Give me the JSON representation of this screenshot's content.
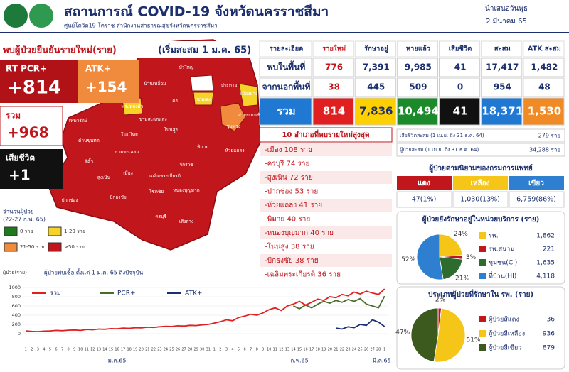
{
  "header": {
    "title": "สถานการณ์ COVID-19 จังหวัดนครราชสีมา",
    "subtitle": "ศูนย์โควิด19 โคราช สำนักงานสาธารณสุขจังหวัดนครราชสีมา",
    "date_line1": "นำเสนอวันพุธ",
    "date_line2": "2 มีนาคม 65"
  },
  "new_cases": {
    "title": "พบผู้ป่วยยืนยันรายใหม่(ราย)",
    "subtitle": "(เริ่มสะสม 1 ม.ค. 65)",
    "boxes": [
      {
        "label": "RT PCR+",
        "value": "+814"
      },
      {
        "label": "ATK+",
        "value": "+154"
      },
      {
        "label": "รวม",
        "value": "+968"
      },
      {
        "label": "เสียชีวิต",
        "value": "+1"
      }
    ]
  },
  "map": {
    "districts": [
      "แก้งสนามนาง",
      "บัวลาย",
      "บัวใหญ่",
      "บ้านเหลื่อม",
      "สีดา",
      "ประทาย",
      "เมืองยาง",
      "โนนแดง",
      "คง",
      "พระทองคำ",
      "ลำทะเมนชัย",
      "ขามสะแกแสง",
      "ชุมพวง",
      "เทพารักษ์",
      "ด่านขุนทด",
      "โนนไทย",
      "โนนสูง",
      "พิมาย",
      "ห้วยแถลง",
      "ขามทะเลสอ",
      "เมือง",
      "จักราช",
      "สีคิ้ว",
      "สูงเนิน",
      "เฉลิมพระเกียรติ",
      "โชคชัย",
      "หนองบุญมาก",
      "ปากช่อง",
      "ปักธงชัย",
      "วังน้ำเขียว",
      "ครบุรี",
      "เสิงสาง"
    ],
    "legend": {
      "title": "จำนวนผู้ป่วย",
      "period": "(22-27 ก.พ. 65)",
      "items": [
        {
          "label": "0 ราย",
          "color": "#1f7a1f"
        },
        {
          "label": "1-20 ราย",
          "color": "#f5d327"
        },
        {
          "label": "21-50 ราย",
          "color": "#f08a3c"
        },
        {
          "label": ">50 ราย",
          "color": "#c0161c"
        }
      ]
    }
  },
  "table": {
    "headers": [
      "รายละเอียด",
      "รายใหม่",
      "รักษาอยู่",
      "หายแล้ว",
      "เสียชีวิต",
      "สะสม",
      "ATK สะสม"
    ],
    "rows": [
      [
        "พบในพื้นที่",
        "776",
        "7,391",
        "9,985",
        "41",
        "17,417",
        "1,482"
      ],
      [
        "จากนอกพื้นที่",
        "38",
        "445",
        "509",
        "0",
        "954",
        "48"
      ],
      [
        "รวม",
        "814",
        "7,836",
        "10,494",
        "41",
        "18,371",
        "1,530"
      ]
    ]
  },
  "top_districts": {
    "title": "10 อำเภอที่พบรายใหม่สูงสุด",
    "items": [
      "-เมือง  108 ราย",
      "-ครบุรี  74 ราย",
      "-สูงเนิน  72 ราย",
      "-ปากช่อง  53 ราย",
      "-ห้วยแถลง  41 ราย",
      "-พิมาย  40 ราย",
      "-หนองบุญมาก  40 ราย",
      "-โนนสูง  38 ราย",
      "-ปักธงชัย  38 ราย",
      "-เฉลิมพระเกียรติ  36 ราย"
    ]
  },
  "cumulative_2021": [
    {
      "label": "เสียชีวิตสะสม (1 เม.ย. ถึง 31 ธ.ค. 64)",
      "value": "279 ราย"
    },
    {
      "label": "ผู้ป่วยสะสม (1 เม.ย. ถึง 31 ธ.ค. 64)",
      "value": "34,288 ราย"
    }
  ],
  "severity": {
    "title": "ผู้ป่วยตามนิยามของกรมการแพทย์",
    "headers": [
      "แดง",
      "เหลือง",
      "เขียว"
    ],
    "values": [
      "47(1%)",
      "1,030(13%)",
      "6,759(86%)"
    ]
  },
  "chart_data": [
    {
      "type": "line",
      "title": "ผู้ป่วยพบเชื้อ ตั้งแต่ 1 ม.ค. 65 ถึงปัจจุบัน",
      "y_label": "ผู้ป่วย(ราย)",
      "categories": [
        "1",
        "2",
        "3",
        "4",
        "5",
        "6",
        "7",
        "8",
        "9",
        "10",
        "11",
        "12",
        "13",
        "14",
        "15",
        "16",
        "17",
        "18",
        "19",
        "20",
        "21",
        "22",
        "23",
        "24",
        "25",
        "26",
        "27",
        "28",
        "29",
        "30",
        "31",
        "1",
        "2",
        "3",
        "4",
        "5",
        "6",
        "7",
        "8",
        "9",
        "10",
        "11",
        "12",
        "13",
        "14",
        "15",
        "16",
        "17",
        "18",
        "19",
        "20",
        "21",
        "22",
        "23",
        "24",
        "25",
        "26",
        "27",
        "28",
        "1"
      ],
      "month_labels": [
        "ม.ค.65",
        "ก.พ.65",
        "มี.ค.65"
      ],
      "ylim": [
        0,
        1000
      ],
      "yticks": [
        0,
        200,
        400,
        600,
        800,
        1000
      ],
      "series": [
        {
          "name": "รวม",
          "color": "#e02020",
          "values": [
            60,
            50,
            45,
            55,
            60,
            70,
            65,
            75,
            80,
            70,
            90,
            85,
            100,
            95,
            110,
            105,
            120,
            115,
            130,
            125,
            140,
            135,
            150,
            160,
            155,
            170,
            165,
            180,
            175,
            190,
            200,
            230,
            260,
            300,
            280,
            350,
            380,
            420,
            400,
            450,
            520,
            560,
            500,
            600,
            640,
            700,
            620,
            680,
            750,
            720,
            800,
            780,
            850,
            820,
            900,
            860,
            920,
            880,
            850,
            968
          ]
        },
        {
          "name": "PCR+",
          "color": "#4a6b2a",
          "values": [
            null,
            null,
            null,
            null,
            null,
            null,
            null,
            null,
            null,
            null,
            null,
            null,
            null,
            null,
            null,
            null,
            null,
            null,
            null,
            null,
            null,
            null,
            null,
            null,
            null,
            null,
            null,
            null,
            null,
            null,
            null,
            null,
            null,
            null,
            null,
            null,
            null,
            null,
            null,
            null,
            null,
            null,
            null,
            null,
            600,
            540,
            620,
            560,
            640,
            700,
            660,
            720,
            680,
            740,
            700,
            760,
            640,
            600,
            560,
            814
          ]
        },
        {
          "name": "ATK+",
          "color": "#1b2f6e",
          "values": [
            null,
            null,
            null,
            null,
            null,
            null,
            null,
            null,
            null,
            null,
            null,
            null,
            null,
            null,
            null,
            null,
            null,
            null,
            null,
            null,
            null,
            null,
            null,
            null,
            null,
            null,
            null,
            null,
            null,
            null,
            null,
            null,
            null,
            null,
            null,
            null,
            null,
            null,
            null,
            null,
            null,
            null,
            null,
            null,
            null,
            null,
            null,
            null,
            null,
            null,
            null,
            120,
            100,
            150,
            130,
            200,
            180,
            300,
            250,
            154
          ]
        }
      ]
    },
    {
      "type": "pie",
      "title": "ผู้ป่วยยังรักษาอยู่ในหน่วยบริการ (ราย)",
      "categories": [
        "รพ.",
        "รพ.สนาม",
        "ชุมชน(CI)",
        "ที่บ้าน(HI)"
      ],
      "values": [
        1862,
        221,
        1635,
        4118
      ],
      "value_labels": [
        "1,862",
        "221",
        "1,635",
        "4,118"
      ],
      "percent_labels": [
        "24%",
        "3%",
        "21%",
        "52%"
      ],
      "colors": [
        "#f5c518",
        "#c0161c",
        "#2e6b2e",
        "#2f7fd0"
      ]
    },
    {
      "type": "pie",
      "title": "ประเภทผู้ป่วยที่รักษาใน รพ. (ราย)",
      "categories": [
        "ผู้ป่วยสีแดง",
        "ผู้ป่วยสีเหลือง",
        "ผู้ป่วยสีเขียว"
      ],
      "values": [
        36,
        936,
        879
      ],
      "percent_labels": [
        "2%",
        "51%",
        "47%"
      ],
      "colors": [
        "#c0161c",
        "#f5c518",
        "#3d5a1e"
      ]
    }
  ]
}
